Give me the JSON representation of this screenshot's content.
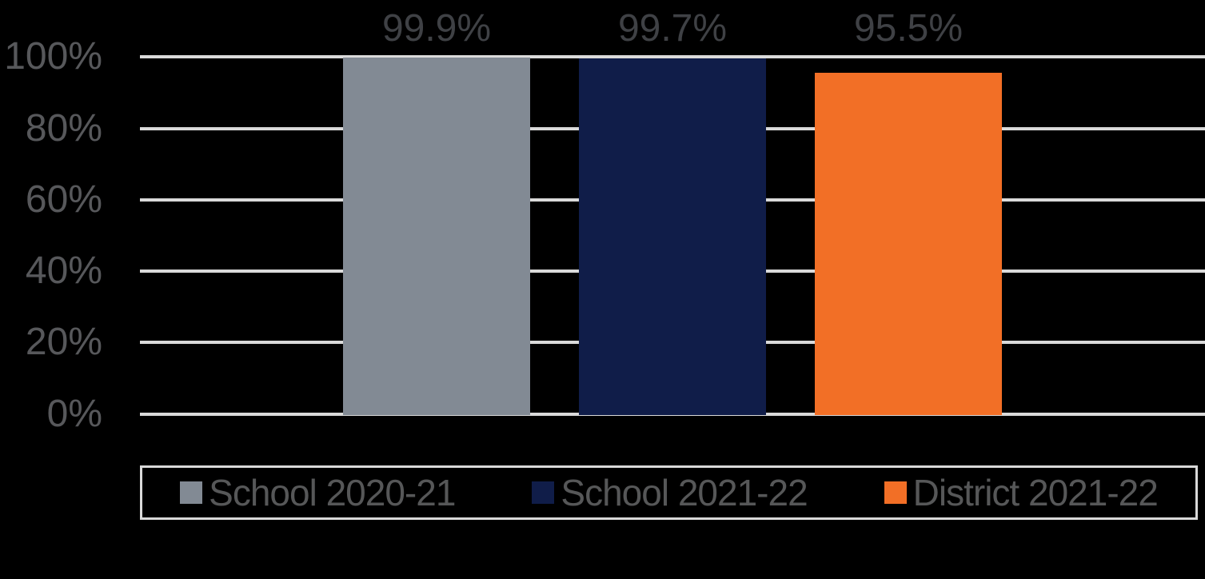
{
  "chart_data": {
    "type": "bar",
    "title": "",
    "xlabel": "",
    "ylabel": "",
    "categories": [
      "School 2020-21",
      "School 2021-22",
      "District 2021-22"
    ],
    "series": [
      {
        "name": "School 2020-21",
        "value": 99.9,
        "label": "99.9%",
        "color": "#828A94"
      },
      {
        "name": "School 2021-22",
        "value": 99.7,
        "label": "99.7%",
        "color": "#101D49"
      },
      {
        "name": "District 2021-22",
        "value": 95.5,
        "label": "95.5%",
        "color": "#F26F26"
      }
    ],
    "ylim": [
      0,
      100
    ],
    "y_ticks": [
      {
        "value": 0,
        "label": "0%"
      },
      {
        "value": 20,
        "label": "20%"
      },
      {
        "value": 40,
        "label": "40%"
      },
      {
        "value": 60,
        "label": "60%"
      },
      {
        "value": 80,
        "label": "80%"
      },
      {
        "value": 100,
        "label": "100%"
      }
    ],
    "grid": true,
    "legend_position": "bottom"
  },
  "colors": {
    "background": "#000000",
    "gridline": "#DADADA",
    "tick_label": "#57585B",
    "data_label": "#3F4145",
    "legend_text": "#565758",
    "legend_border": "#D9D9D9"
  }
}
